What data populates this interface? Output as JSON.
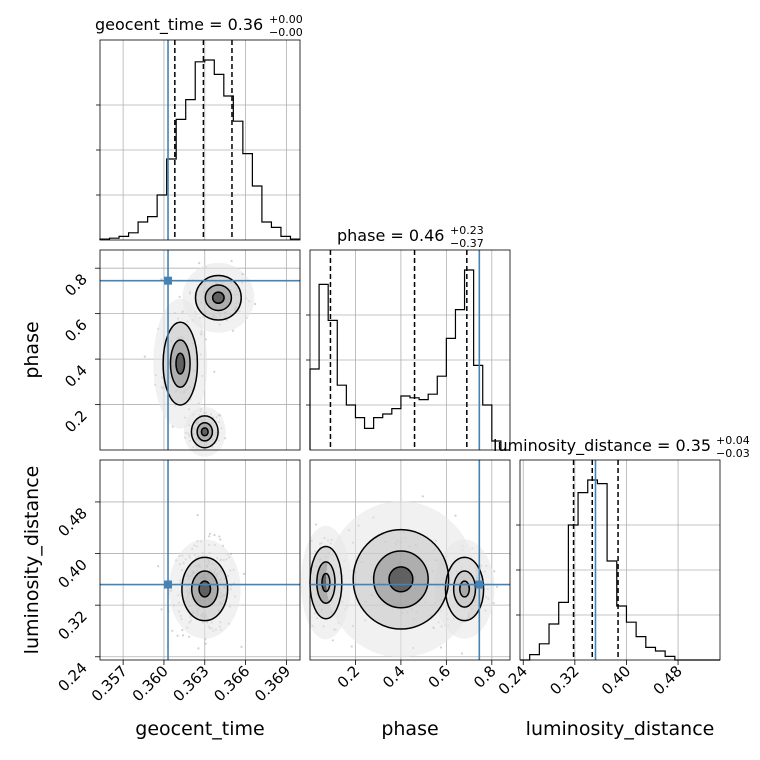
{
  "chart_data": {
    "type": "corner",
    "parameters": [
      "geocent_time",
      "phase",
      "luminosity_distance"
    ],
    "truth": {
      "geocent_time": 0.3603,
      "phase": 0.745,
      "luminosity_distance": 0.352
    },
    "titles": [
      {
        "name": "geocent_time",
        "value": "0.36",
        "plus": "+0.00",
        "minus": "−0.00"
      },
      {
        "name": "phase",
        "value": "0.46",
        "plus": "+0.23",
        "minus": "−0.37"
      },
      {
        "name": "luminosity_distance",
        "value": "0.35",
        "plus": "+0.04",
        "minus": "−0.03"
      }
    ],
    "axes": {
      "geocent_time": {
        "range": [
          0.3553,
          0.37
        ],
        "ticks": [
          "0.357",
          "0.360",
          "0.363",
          "0.366",
          "0.369"
        ],
        "tick_values": [
          0.357,
          0.36,
          0.363,
          0.366,
          0.369
        ],
        "label": "geocent_time"
      },
      "phase": {
        "range": [
          0.0,
          0.88
        ],
        "ticks": [
          "0.2",
          "0.4",
          "0.6",
          "0.8"
        ],
        "tick_values": [
          0.2,
          0.4,
          0.6,
          0.8
        ],
        "label": "phase"
      },
      "luminosity_distance": {
        "range": [
          0.235,
          0.545
        ],
        "ticks": [
          "0.24",
          "0.32",
          "0.40",
          "0.48"
        ],
        "tick_values": [
          0.24,
          0.32,
          0.4,
          0.48
        ],
        "label": "luminosity_distance"
      }
    },
    "histograms": {
      "geocent_time": {
        "bins": [
          0.3553,
          0.356,
          0.3567,
          0.3574,
          0.3581,
          0.3588,
          0.3595,
          0.3602,
          0.3609,
          0.3616,
          0.3623,
          0.363,
          0.3637,
          0.3644,
          0.3651,
          0.3658,
          0.3665,
          0.3672,
          0.3679,
          0.3686,
          0.3693,
          0.37
        ],
        "counts": [
          0.005,
          0.01,
          0.02,
          0.04,
          0.1,
          0.13,
          0.25,
          0.45,
          0.67,
          0.78,
          0.99,
          1.0,
          0.92,
          0.8,
          0.66,
          0.48,
          0.3,
          0.1,
          0.07,
          0.02,
          0.005
        ],
        "quantiles": [
          0.3608,
          0.3629,
          0.365
        ]
      },
      "phase": {
        "bins": [
          0.0,
          0.04,
          0.08,
          0.12,
          0.16,
          0.2,
          0.24,
          0.28,
          0.32,
          0.36,
          0.4,
          0.44,
          0.48,
          0.52,
          0.56,
          0.6,
          0.64,
          0.68,
          0.72,
          0.76,
          0.8,
          0.84,
          0.88
        ],
        "counts": [
          0.45,
          0.92,
          0.72,
          0.36,
          0.25,
          0.18,
          0.12,
          0.18,
          0.2,
          0.23,
          0.3,
          0.29,
          0.28,
          0.31,
          0.41,
          0.62,
          0.78,
          1.0,
          0.47,
          0.25,
          0.05,
          0.0
        ],
        "quantiles": [
          0.09,
          0.46,
          0.69
        ]
      },
      "luminosity_distance": {
        "bins": [
          0.235,
          0.25,
          0.265,
          0.28,
          0.295,
          0.31,
          0.325,
          0.34,
          0.355,
          0.37,
          0.385,
          0.4,
          0.415,
          0.43,
          0.445,
          0.46,
          0.475,
          0.49,
          0.505,
          0.52,
          0.535,
          0.545
        ],
        "counts": [
          0.0,
          0.03,
          0.09,
          0.2,
          0.32,
          0.75,
          0.93,
          1.0,
          0.98,
          0.55,
          0.3,
          0.21,
          0.13,
          0.07,
          0.05,
          0.02,
          0.0,
          0.0,
          0.0,
          0.0,
          0.0
        ],
        "quantiles": [
          0.318,
          0.347,
          0.387
        ]
      }
    },
    "grid": true
  }
}
